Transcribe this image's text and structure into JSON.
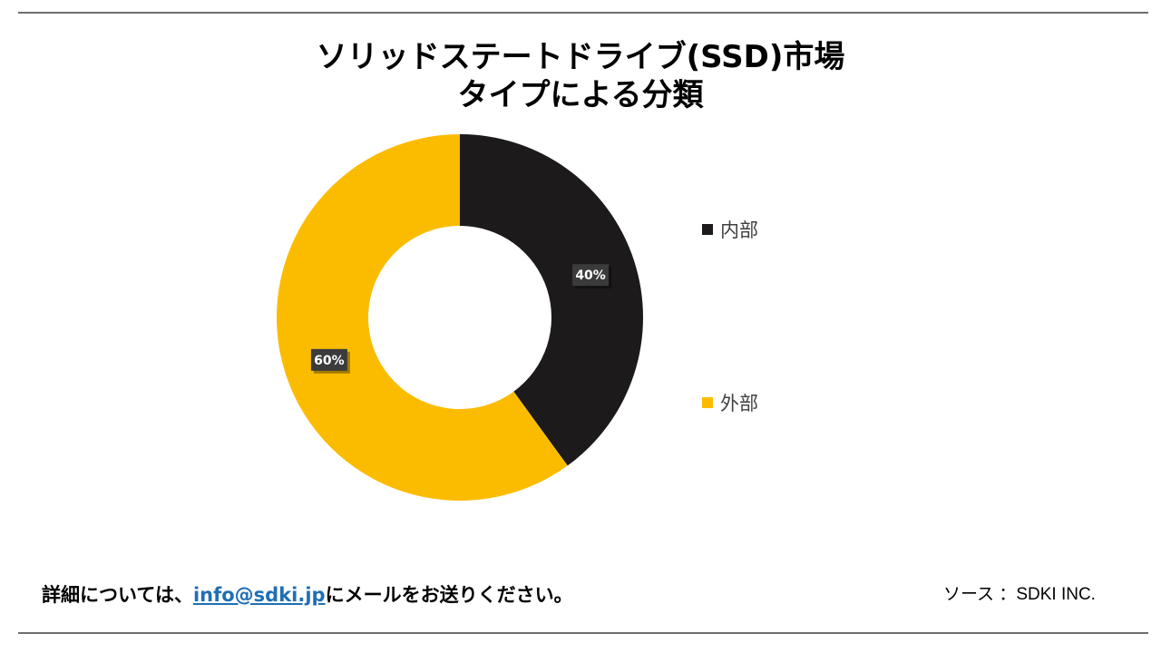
{
  "title": {
    "line1": "ソリッドステートドライブ(SSD)市場",
    "line2": "タイプによる分類"
  },
  "chart_data": {
    "type": "pie",
    "variant": "donut",
    "title": "ソリッドステートドライブ(SSD)市場 タイプによる分類",
    "categories": [
      "内部",
      "外部"
    ],
    "values": [
      40,
      60
    ],
    "labels": [
      "40%",
      "60%"
    ],
    "colors": [
      "#1c1a1a",
      "#fbbc00"
    ],
    "legend_position": "right"
  },
  "footer": {
    "prefix": "詳細については、",
    "email": "info@sdki.jp",
    "suffix": "にメールをお送りください。"
  },
  "source": "ソース ：SDKI INC."
}
